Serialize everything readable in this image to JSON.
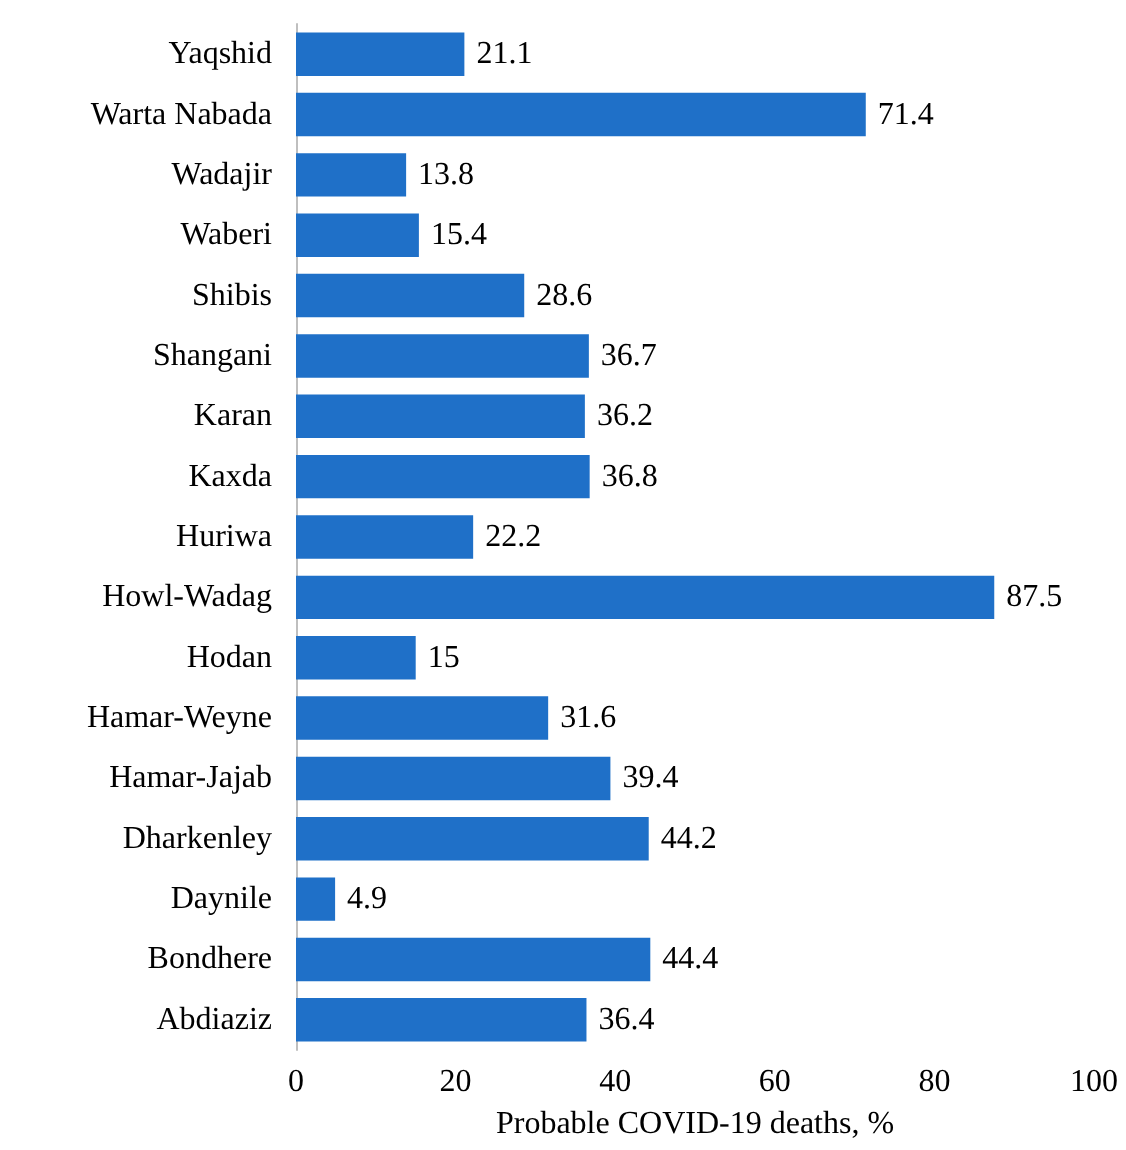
{
  "chart_data": {
    "type": "bar",
    "orientation": "horizontal",
    "xlabel": "Probable COVID-19 deaths, %",
    "categories": [
      "Yaqshid",
      "Warta Nabada",
      "Wadajir",
      "Waberi",
      "Shibis",
      "Shangani",
      "Karan",
      "Kaxda",
      "Huriwa",
      "Howl-Wadag",
      "Hodan",
      "Hamar-Weyne",
      "Hamar-Jajab",
      "Dharkenley",
      "Daynile",
      "Bondhere",
      "Abdiaziz"
    ],
    "values": [
      21.1,
      71.4,
      13.8,
      15.4,
      28.6,
      36.7,
      36.2,
      36.8,
      22.2,
      87.5,
      15,
      31.6,
      39.4,
      44.2,
      4.9,
      44.4,
      36.4
    ],
    "color": "#1f70c8",
    "xlim": [
      0,
      100
    ],
    "xticks": [
      0,
      20,
      40,
      60,
      80,
      100
    ],
    "data_labels": true
  }
}
